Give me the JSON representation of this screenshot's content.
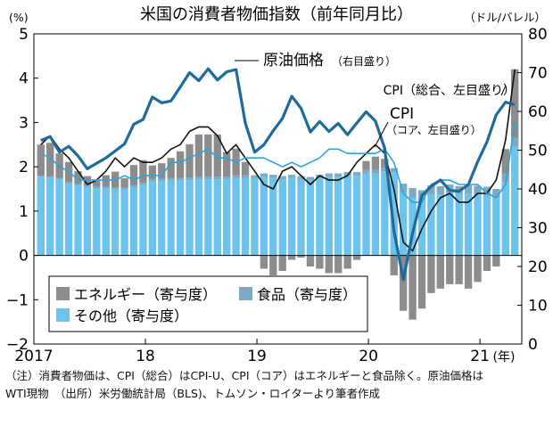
{
  "chart_data": {
    "type": "bar",
    "title": "米国の消費者物価指数（前年同月比）",
    "left_axis_unit": "(%)",
    "right_axis_unit": "（ドル/バレル）",
    "left_ylim": [
      -2,
      5
    ],
    "left_ticks": [
      "−2",
      "−1",
      "0",
      "1",
      "2",
      "3",
      "4",
      "5"
    ],
    "right_ylim": [
      0,
      80
    ],
    "right_ticks": [
      "0",
      "10",
      "20",
      "30",
      "40",
      "50",
      "60",
      "70",
      "80"
    ],
    "x_tick_labels": [
      {
        "label": "2017",
        "month_index": 0
      },
      {
        "label": "18",
        "month_index": 12
      },
      {
        "label": "19",
        "month_index": 24
      },
      {
        "label": "20",
        "month_index": 36
      },
      {
        "label": "21",
        "month_index": 48
      }
    ],
    "x_unit_label": "(年)",
    "months": [
      "2017-01",
      "2017-02",
      "2017-03",
      "2017-04",
      "2017-05",
      "2017-06",
      "2017-07",
      "2017-08",
      "2017-09",
      "2017-10",
      "2017-11",
      "2017-12",
      "2018-01",
      "2018-02",
      "2018-03",
      "2018-04",
      "2018-05",
      "2018-06",
      "2018-07",
      "2018-08",
      "2018-09",
      "2018-10",
      "2018-11",
      "2018-12",
      "2019-01",
      "2019-02",
      "2019-03",
      "2019-04",
      "2019-05",
      "2019-06",
      "2019-07",
      "2019-08",
      "2019-09",
      "2019-10",
      "2019-11",
      "2019-12",
      "2020-01",
      "2020-02",
      "2020-03",
      "2020-04",
      "2020-05",
      "2020-06",
      "2020-07",
      "2020-08",
      "2020-09",
      "2020-10",
      "2020-11",
      "2020-12",
      "2021-01",
      "2021-02",
      "2021-03",
      "2021-04"
    ],
    "stacked_series": [
      {
        "name": "その他（寄与度）",
        "color": "#6cc3ec",
        "values": [
          1.78,
          1.76,
          1.72,
          1.62,
          1.58,
          1.55,
          1.52,
          1.52,
          1.5,
          1.5,
          1.55,
          1.6,
          1.68,
          1.68,
          1.7,
          1.7,
          1.7,
          1.72,
          1.72,
          1.72,
          1.72,
          1.75,
          1.75,
          1.75,
          1.78,
          1.75,
          1.72,
          1.75,
          1.72,
          1.7,
          1.75,
          1.78,
          1.78,
          1.8,
          1.8,
          1.85,
          1.85,
          1.9,
          1.88,
          1.42,
          1.3,
          1.25,
          1.38,
          1.38,
          1.42,
          1.38,
          1.4,
          1.38,
          1.35,
          1.3,
          1.65,
          2.45
        ]
      },
      {
        "name": "食品（寄与度）",
        "color": "#7faac6",
        "values": [
          0.02,
          0.03,
          0.03,
          0.04,
          0.04,
          0.04,
          0.04,
          0.04,
          0.04,
          0.04,
          0.04,
          0.05,
          0.05,
          0.05,
          0.05,
          0.05,
          0.06,
          0.06,
          0.06,
          0.06,
          0.06,
          0.06,
          0.06,
          0.06,
          0.07,
          0.07,
          0.07,
          0.07,
          0.07,
          0.07,
          0.07,
          0.07,
          0.07,
          0.08,
          0.08,
          0.08,
          0.08,
          0.08,
          0.09,
          0.2,
          0.22,
          0.22,
          0.2,
          0.18,
          0.18,
          0.18,
          0.18,
          0.19,
          0.2,
          0.2,
          0.2,
          0.2
        ]
      },
      {
        "name": "エネルギー（寄与度）",
        "color": "#8c8c8c",
        "values": [
          0.7,
          0.75,
          0.55,
          0.45,
          0.28,
          0.2,
          0.15,
          0.25,
          0.35,
          0.2,
          0.45,
          0.5,
          0.3,
          0.35,
          0.45,
          0.6,
          0.75,
          0.95,
          0.95,
          0.95,
          0.55,
          0.6,
          0.3,
          0.0,
          -0.3,
          -0.45,
          -0.35,
          -0.1,
          -0.05,
          -0.25,
          -0.3,
          -0.4,
          -0.4,
          -0.3,
          -0.1,
          0.2,
          0.3,
          0.2,
          -0.45,
          -1.25,
          -1.45,
          -1.2,
          -0.85,
          -0.75,
          -0.65,
          -0.65,
          -0.75,
          -0.6,
          -0.35,
          -0.25,
          0.55,
          1.55
        ]
      }
    ],
    "line_series": [
      {
        "name": "CPI（総合、左目盛り）",
        "axis": "left",
        "color": "#111111",
        "values": [
          2.5,
          2.7,
          2.4,
          2.2,
          1.9,
          1.6,
          1.7,
          1.9,
          2.2,
          2.0,
          2.2,
          2.1,
          2.1,
          2.2,
          2.4,
          2.5,
          2.8,
          2.9,
          2.9,
          2.7,
          2.3,
          2.5,
          2.2,
          1.9,
          1.6,
          1.5,
          1.9,
          2.0,
          1.8,
          1.6,
          1.8,
          1.7,
          1.7,
          1.8,
          2.1,
          2.3,
          2.5,
          2.3,
          1.5,
          0.3,
          0.1,
          0.6,
          1.0,
          1.3,
          1.4,
          1.2,
          1.2,
          1.4,
          1.4,
          1.7,
          2.6,
          4.2
        ]
      },
      {
        "name": "CPI（コア、左目盛り）",
        "axis": "left",
        "color": "#2aa4dc",
        "values": [
          2.3,
          2.2,
          2.0,
          1.9,
          1.7,
          1.7,
          1.7,
          1.7,
          1.7,
          1.8,
          1.7,
          1.8,
          1.8,
          1.8,
          2.1,
          2.1,
          2.2,
          2.3,
          2.4,
          2.2,
          2.2,
          2.1,
          2.2,
          2.2,
          2.2,
          2.1,
          2.0,
          2.1,
          2.0,
          2.1,
          2.2,
          2.4,
          2.4,
          2.3,
          2.3,
          2.3,
          2.3,
          2.4,
          2.1,
          1.4,
          1.2,
          1.2,
          1.6,
          1.7,
          1.7,
          1.6,
          1.6,
          1.6,
          1.4,
          1.3,
          1.6,
          3.0
        ]
      },
      {
        "name": "原油価格（右目盛り）",
        "axis": "right",
        "color": "#1d6b9a",
        "values": [
          52.5,
          53.5,
          49.5,
          51.0,
          48.5,
          45.2,
          46.6,
          48.0,
          49.8,
          51.6,
          56.7,
          57.9,
          63.7,
          62.2,
          62.7,
          66.3,
          70.0,
          67.9,
          71.0,
          68.1,
          70.2,
          70.8,
          57.0,
          49.5,
          51.4,
          55.0,
          58.2,
          63.9,
          60.8,
          54.7,
          57.4,
          54.8,
          56.9,
          54.0,
          57.0,
          59.9,
          57.5,
          50.5,
          29.2,
          16.6,
          28.6,
          38.3,
          40.7,
          42.3,
          39.6,
          39.4,
          41.1,
          47.0,
          52.1,
          59.1,
          62.4,
          61.7
        ]
      }
    ],
    "legend": [
      {
        "label": "エネルギー（寄与度）",
        "color": "#8c8c8c"
      },
      {
        "label": "食品（寄与度）",
        "color": "#7faac6"
      },
      {
        "label": "その他（寄与度）",
        "color": "#6cc3ec"
      }
    ],
    "annotations": {
      "oil": "原油価格",
      "oil_sub": "（右目盛り）",
      "cpi_total": "CPI（総合、左目盛り）",
      "cpi_core_1": "CPI",
      "cpi_core_2": "（コア、左目盛り）"
    }
  },
  "footnote": {
    "line1": "（注）消費者物価は、CPI（総合）はCPI-U、CPI（コア）はエネルギーと食品除く。原油価格は",
    "line2": "WTI現物　（出所）米労働統計局（BLS)、トムソン・ロイターより筆者作成"
  }
}
